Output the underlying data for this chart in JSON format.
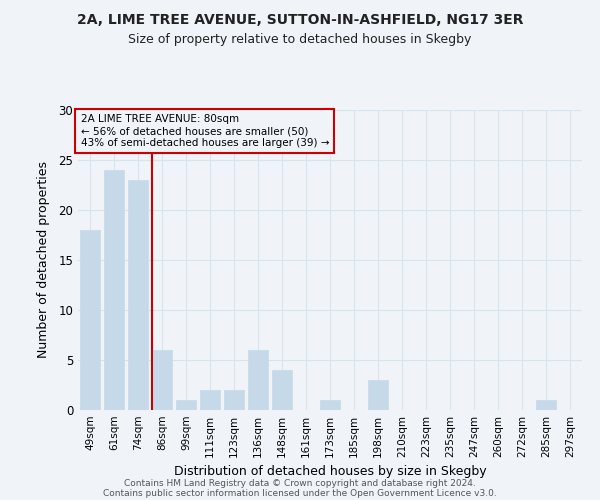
{
  "title1": "2A, LIME TREE AVENUE, SUTTON-IN-ASHFIELD, NG17 3ER",
  "title2": "Size of property relative to detached houses in Skegby",
  "xlabel": "Distribution of detached houses by size in Skegby",
  "ylabel": "Number of detached properties",
  "bar_labels": [
    "49sqm",
    "61sqm",
    "74sqm",
    "86sqm",
    "99sqm",
    "111sqm",
    "123sqm",
    "136sqm",
    "148sqm",
    "161sqm",
    "173sqm",
    "185sqm",
    "198sqm",
    "210sqm",
    "223sqm",
    "235sqm",
    "247sqm",
    "260sqm",
    "272sqm",
    "285sqm",
    "297sqm"
  ],
  "bar_values": [
    18,
    24,
    23,
    6,
    1,
    2,
    2,
    6,
    4,
    0,
    1,
    0,
    3,
    0,
    0,
    0,
    0,
    0,
    0,
    1,
    0
  ],
  "bar_color": "#c5d9e8",
  "bar_edge_color": "#c5d9e8",
  "vline_color": "#cc0000",
  "vline_x_index": 3,
  "annotation_title": "2A LIME TREE AVENUE: 80sqm",
  "annotation_line1": "← 56% of detached houses are smaller (50)",
  "annotation_line2": "43% of semi-detached houses are larger (39) →",
  "annotation_box_edge": "#cc0000",
  "ylim": [
    0,
    30
  ],
  "yticks": [
    0,
    5,
    10,
    15,
    20,
    25,
    30
  ],
  "footer1": "Contains HM Land Registry data © Crown copyright and database right 2024.",
  "footer2": "Contains public sector information licensed under the Open Government Licence v3.0.",
  "background_color": "#f0f4f8",
  "grid_color": "#d8e4ed"
}
